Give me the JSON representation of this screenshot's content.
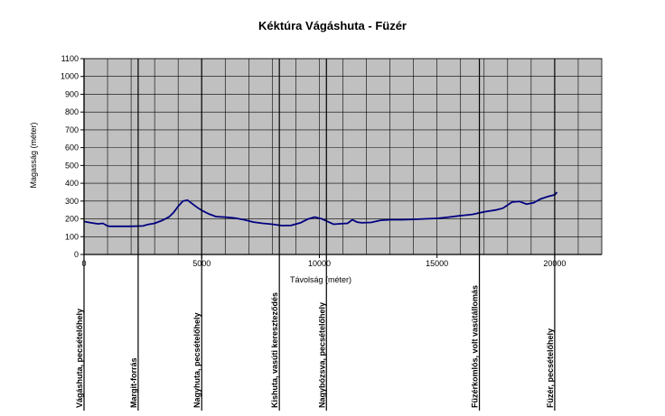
{
  "chart_data": {
    "type": "line",
    "title": "Kéktúra Vágáshuta - Füzér",
    "xlabel": "Távolság (méter)",
    "ylabel": "Magasság (méter)",
    "xlim": [
      0,
      22000
    ],
    "ylim": [
      0,
      1100
    ],
    "xticks": [
      0,
      5000,
      10000,
      15000,
      20000
    ],
    "xtick_labels": [
      "0",
      "5000",
      "10000",
      "15000",
      "20000"
    ],
    "yticks": [
      0,
      100,
      200,
      300,
      400,
      500,
      600,
      700,
      800,
      900,
      1000,
      1100
    ],
    "ytick_labels": [
      "0",
      "100",
      "200",
      "300",
      "400",
      "500",
      "600",
      "700",
      "800",
      "900",
      "1000",
      "1100"
    ],
    "grid": true,
    "x_minor_step": 1000,
    "colors": {
      "plot_bg": "#c0c0c0",
      "line": "#000080",
      "grid": "#000000"
    },
    "series": [
      {
        "x": [
          0,
          300,
          600,
          800,
          1000,
          1100,
          1500,
          2000,
          2500,
          2700,
          3000,
          3300,
          3600,
          3800,
          4000,
          4200,
          4400,
          4600,
          4800,
          5000,
          5300,
          5600,
          6000,
          6400,
          6800,
          7200,
          7600,
          8000,
          8400,
          8800,
          9200,
          9500,
          9800,
          10100,
          10400,
          10600,
          10800,
          11200,
          11400,
          11600,
          11800,
          12200,
          12600,
          13000,
          13500,
          14000,
          14500,
          15000,
          15500,
          16000,
          16500,
          17000,
          17500,
          17800,
          18200,
          18500,
          18800,
          19100,
          19400,
          19700,
          20000,
          20100
        ],
        "y": [
          185,
          178,
          172,
          175,
          160,
          158,
          158,
          158,
          160,
          168,
          175,
          190,
          210,
          235,
          270,
          300,
          305,
          285,
          265,
          248,
          228,
          213,
          210,
          205,
          195,
          182,
          175,
          170,
          162,
          163,
          178,
          198,
          210,
          200,
          182,
          170,
          172,
          175,
          195,
          182,
          178,
          180,
          192,
          195,
          195,
          197,
          200,
          203,
          210,
          218,
          225,
          240,
          250,
          260,
          295,
          298,
          283,
          290,
          312,
          325,
          335,
          350
        ]
      }
    ],
    "markers": [
      {
        "x": 0,
        "label": "Vágáshuta, pecsételőhely"
      },
      {
        "x": 2300,
        "label": "Margit-forrás"
      },
      {
        "x": 5000,
        "label": "Nagyhuta, pecsételőhely"
      },
      {
        "x": 8300,
        "label": "Kishuta, vasúti kereszteződés"
      },
      {
        "x": 10300,
        "label": "Nagybózsva, pecsételőhely"
      },
      {
        "x": 16800,
        "label": "Füzérkomlós, volt vasútállomás"
      },
      {
        "x": 20000,
        "label": "Füzér, pecsételőhely"
      }
    ]
  }
}
